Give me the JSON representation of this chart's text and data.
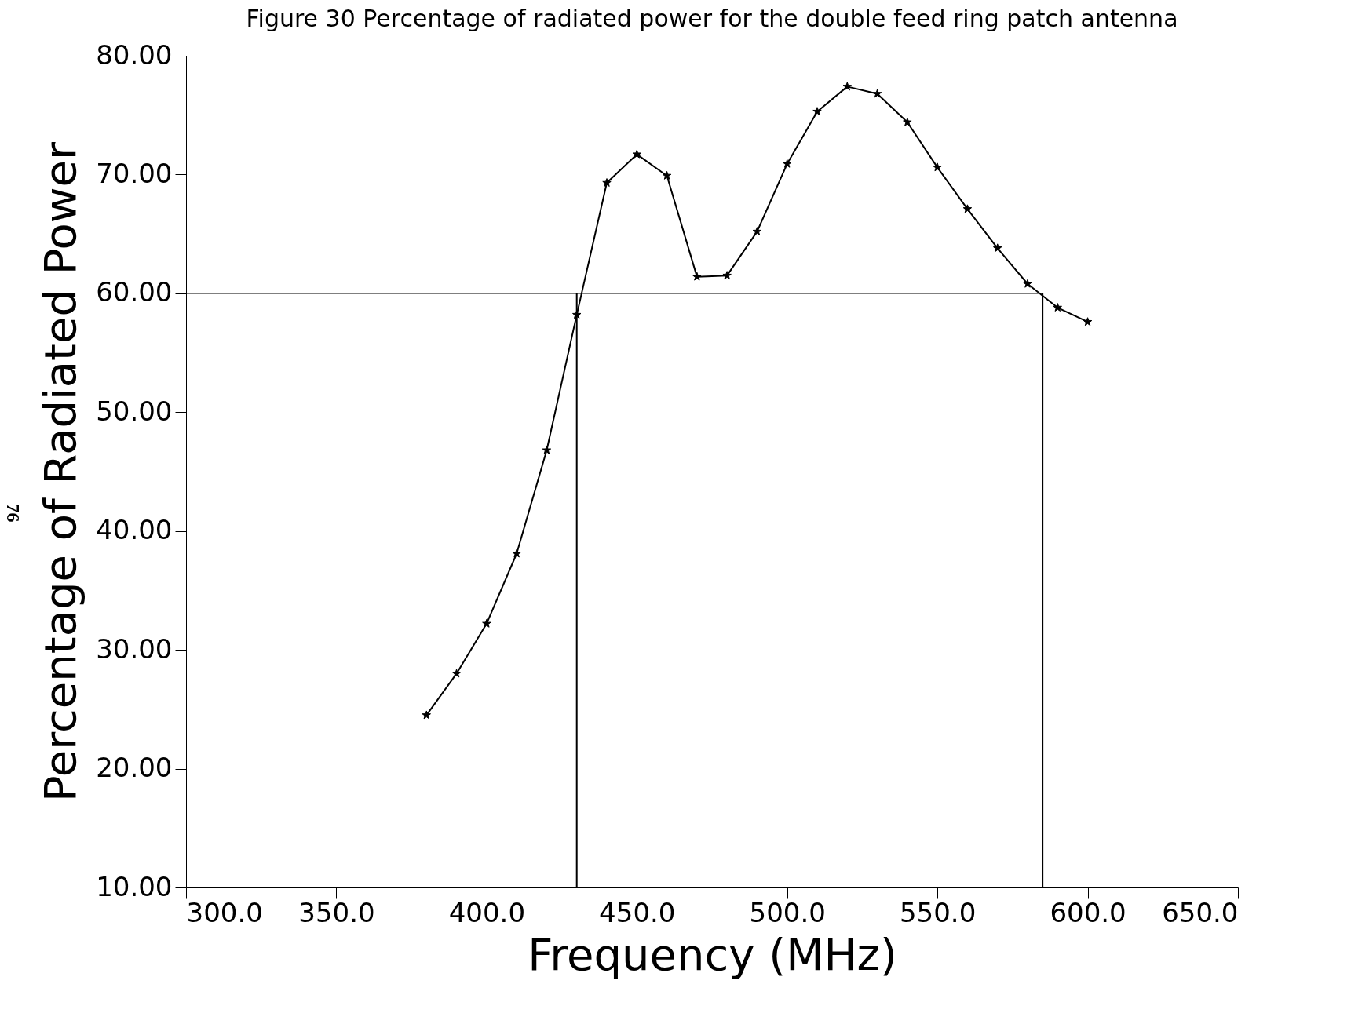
{
  "chart_data": {
    "type": "line",
    "title": "Figure 30 Percentage of radiated power for the double feed ring patch antenna",
    "xlabel": "Frequency (MHz)",
    "ylabel": "Percentage of Radiated Power",
    "x": [
      380,
      390,
      400,
      410,
      420,
      430,
      440,
      450,
      460,
      470,
      480,
      490,
      500,
      510,
      520,
      530,
      540,
      550,
      560,
      570,
      580,
      590,
      600
    ],
    "series": [
      {
        "color": "#000000",
        "values": [
          24.5,
          28.0,
          32.2,
          38.1,
          46.8,
          58.2,
          69.3,
          71.7,
          69.9,
          61.4,
          61.5,
          65.2,
          70.9,
          75.3,
          77.4,
          76.8,
          74.4,
          70.6,
          67.1,
          63.8,
          60.8,
          58.8,
          57.6
        ]
      }
    ],
    "xlim": [
      300,
      650
    ],
    "xticks": [
      {
        "value": 300,
        "label": "300.0"
      },
      {
        "value": 350,
        "label": "350.0"
      },
      {
        "value": 400,
        "label": "400.0"
      },
      {
        "value": 450,
        "label": "450.0"
      },
      {
        "value": 500,
        "label": "500.0"
      },
      {
        "value": 550,
        "label": "550.0"
      },
      {
        "value": 600,
        "label": "600.0"
      },
      {
        "value": 650,
        "label": "650.0"
      }
    ],
    "ylim": [
      10,
      80
    ],
    "yticks": [
      {
        "value": 10,
        "label": "10.00"
      },
      {
        "value": 20,
        "label": "20.00"
      },
      {
        "value": 30,
        "label": "30.00"
      },
      {
        "value": 40,
        "label": "40.00"
      },
      {
        "value": 50,
        "label": "50.00"
      },
      {
        "value": 60,
        "label": "60.00"
      },
      {
        "value": 70,
        "label": "70.00"
      },
      {
        "value": 80,
        "label": "80.00"
      }
    ],
    "ref_lines": [
      {
        "axis": "y",
        "value": 60,
        "color": "#000000"
      },
      {
        "axis": "x",
        "value": 430,
        "color": "#000000"
      },
      {
        "axis": "x",
        "value": 585,
        "color": "#000000"
      }
    ],
    "marker": "star",
    "line_style": "solid",
    "grid": false,
    "annotations": [
      "76"
    ]
  }
}
